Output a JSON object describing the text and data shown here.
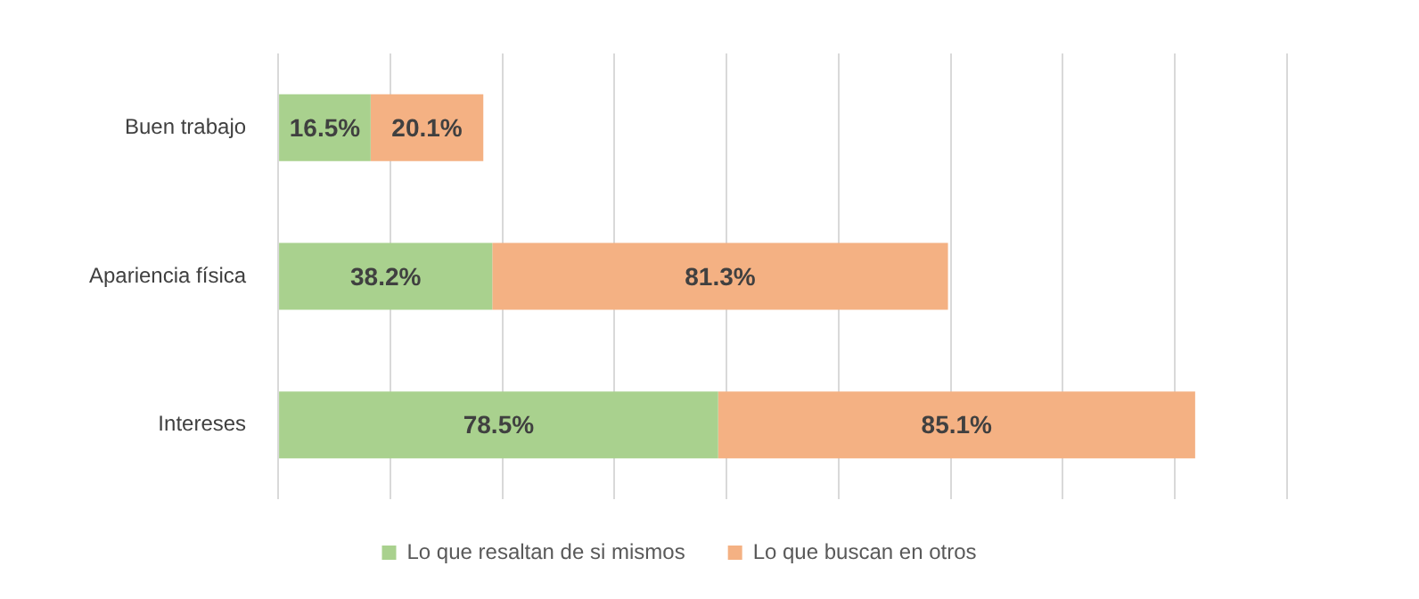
{
  "chart_data": {
    "type": "bar",
    "orientation": "horizontal",
    "stacked": true,
    "categories": [
      "Buen trabajo",
      "Apariencia física",
      "Intereses"
    ],
    "series": [
      {
        "name": "Lo que resaltan de si mismos",
        "color": "#a9d18e",
        "values": [
          16.5,
          38.2,
          78.5
        ],
        "value_labels": [
          "16.5%",
          "38.2%",
          "78.5%"
        ]
      },
      {
        "name": "Lo que buscan en otros",
        "color": "#f4b183",
        "values": [
          20.1,
          81.3,
          85.1
        ],
        "value_labels": [
          "20.1%",
          "81.3%",
          "85.1%"
        ]
      }
    ],
    "xlim": [
      0,
      180
    ],
    "xticks": [
      {
        "value": 0,
        "label": null
      },
      {
        "value": 20,
        "label": null
      },
      {
        "value": 40,
        "label": null
      },
      {
        "value": 60,
        "label": null
      },
      {
        "value": 80,
        "label": null
      },
      {
        "value": 100,
        "label": null
      },
      {
        "value": 120,
        "label": null
      },
      {
        "value": 140,
        "label": null
      },
      {
        "value": 160,
        "label": null
      },
      {
        "value": 180,
        "label": null
      }
    ],
    "tick_labels": "y",
    "grid": "x",
    "legend": "bottom"
  }
}
